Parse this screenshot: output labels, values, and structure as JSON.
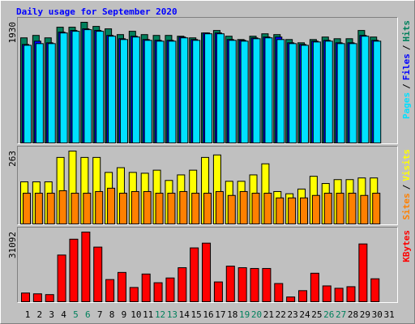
{
  "chart_data": {
    "type": "bar",
    "title": "Daily usage for September 2020",
    "separator": "/",
    "categories": [
      "1",
      "2",
      "3",
      "4",
      "5",
      "6",
      "7",
      "8",
      "9",
      "10",
      "11",
      "12",
      "13",
      "14",
      "15",
      "16",
      "17",
      "18",
      "19",
      "20",
      "21",
      "22",
      "23",
      "24",
      "25",
      "26",
      "27",
      "28",
      "29",
      "30",
      "31"
    ],
    "category_colors": [
      "#000000",
      "#000000",
      "#000000",
      "#000000",
      "#00805c",
      "#00805c",
      "#000000",
      "#000000",
      "#000000",
      "#000000",
      "#000000",
      "#00805c",
      "#00805c",
      "#000000",
      "#000000",
      "#000000",
      "#000000",
      "#000000",
      "#00805c",
      "#00805c",
      "#000000",
      "#000000",
      "#000000",
      "#000000",
      "#000000",
      "#00805c",
      "#00805c",
      "#000000",
      "#000000",
      "#000000",
      "#000000"
    ],
    "panels": [
      {
        "ylim": [
          0,
          1930
        ],
        "yticks": [
          1930
        ],
        "series": [
          {
            "name": "Hits",
            "color": "#00805c",
            "values": [
              1681,
              1720,
              1681,
              1851,
              1851,
              1930,
              1864,
              1825,
              1733,
              1786,
              1733,
              1720,
              1720,
              1707,
              1681,
              1759,
              1799,
              1707,
              1654,
              1707,
              1746,
              1733,
              1654,
              1602,
              1654,
              1694,
              1667,
              1667,
              1799,
              1694,
              null
            ]
          },
          {
            "name": "Files",
            "color": "#0000ff",
            "values": [
              1575,
              1628,
              1602,
              1772,
              1799,
              1825,
              1799,
              1720,
              1667,
              1707,
              1654,
              1641,
              1641,
              1694,
              1654,
              1759,
              1759,
              1654,
              1641,
              1680,
              1694,
              1694,
              1602,
              1575,
              1628,
              1641,
              1602,
              1602,
              1720,
              1641,
              null
            ]
          },
          {
            "name": "Pages",
            "color": "#00e0ff",
            "values": [
              1562,
              1589,
              1589,
              1759,
              1786,
              1812,
              1786,
              1707,
              1654,
              1694,
              1641,
              1628,
              1628,
              1681,
              1641,
              1746,
              1746,
              1641,
              1628,
              1667,
              1681,
              1654,
              1589,
              1562,
              1615,
              1628,
              1589,
              1589,
              1707,
              1628,
              null
            ]
          }
        ]
      },
      {
        "ylim": [
          0,
          263
        ],
        "yticks": [
          263
        ],
        "series": [
          {
            "name": "Visits",
            "color": "#ffff00",
            "values": [
              152,
              152,
              152,
              240,
              263,
              240,
              240,
              186,
              203,
              186,
              183,
              194,
              157,
              177,
              194,
              240,
              249,
              154,
              154,
              177,
              217,
              117,
              109,
              126,
              172,
              146,
              160,
              160,
              166,
              166,
              null
            ]
          },
          {
            "name": "Sites",
            "color": "#ff8000",
            "values": [
              111,
              111,
              111,
              120,
              111,
              111,
              117,
              129,
              111,
              117,
              117,
              111,
              111,
              117,
              111,
              111,
              117,
              103,
              117,
              111,
              111,
              94,
              94,
              94,
              103,
              111,
              111,
              111,
              103,
              111,
              null
            ]
          }
        ]
      },
      {
        "ylim": [
          0,
          31092
        ],
        "yticks": [
          31092
        ],
        "series": [
          {
            "name": "KBytes",
            "color": "#ff0000",
            "values": [
              3886,
              3533,
              3180,
              20846,
              27912,
              31092,
              24379,
              9893,
              13073,
              6360,
              12366,
              8480,
              10600,
              15193,
              24026,
              26146,
              8833,
              15899,
              15193,
              14839,
              14839,
              8126,
              2120,
              4946,
              12720,
              7066,
              6006,
              6713,
              25792,
              10246,
              null
            ]
          }
        ]
      }
    ]
  }
}
